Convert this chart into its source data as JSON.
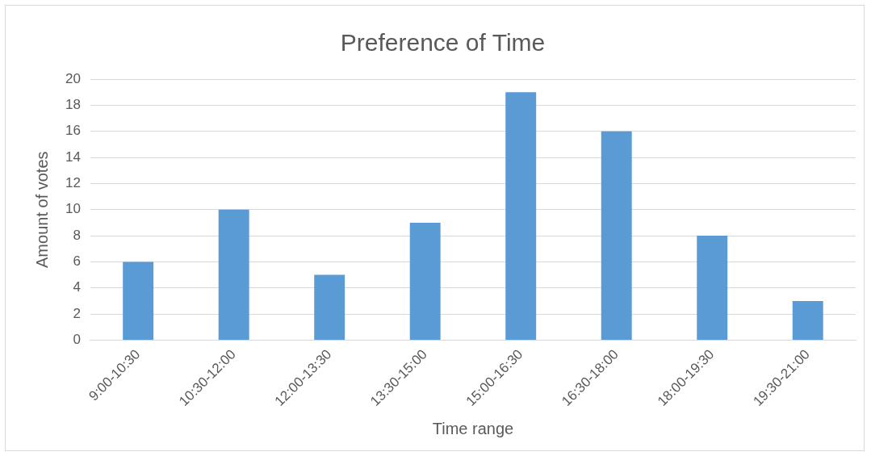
{
  "chart_data": {
    "type": "bar",
    "title": "Preference of Time",
    "xlabel": "Time range",
    "ylabel": "Amount of votes",
    "categories": [
      "9:00-10:30",
      "10:30-12:00",
      "12:00-13:30",
      "13:30-15:00",
      "15:00-16:30",
      "16:30-18:00",
      "18:00-19:30",
      "19:30-21:00"
    ],
    "values": [
      6,
      10,
      5,
      9,
      19,
      16,
      8,
      3
    ],
    "color": "#5b9bd5",
    "ylim": [
      0,
      20
    ],
    "yticks": [
      0,
      2,
      4,
      6,
      8,
      10,
      12,
      14,
      16,
      18,
      20
    ],
    "grid": "y"
  }
}
